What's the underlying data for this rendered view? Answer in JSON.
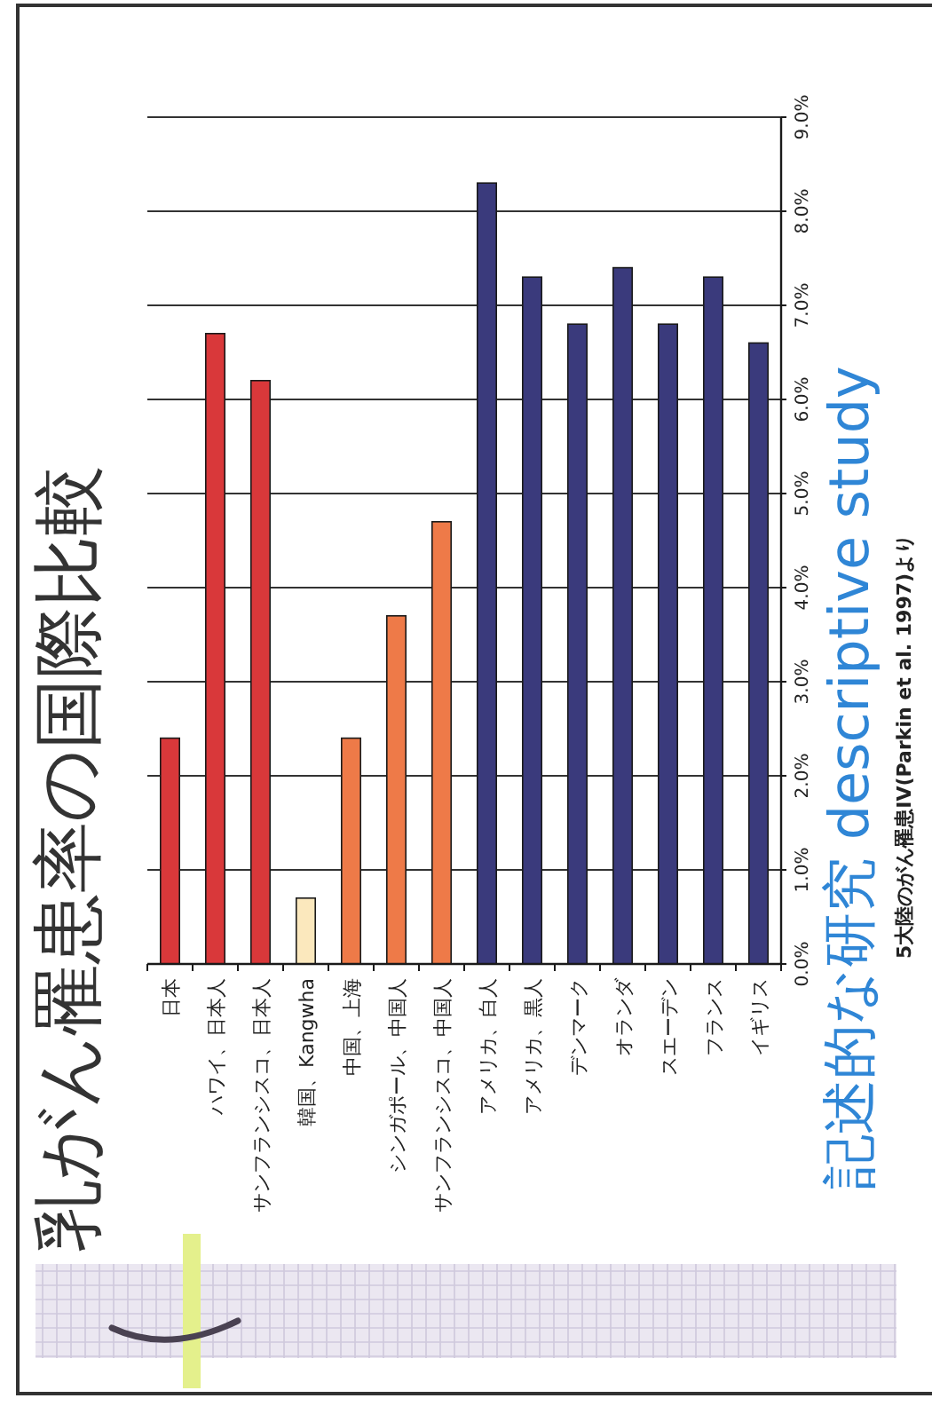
{
  "chart_data": {
    "type": "bar",
    "title": "乳がん罹患率の国際比較",
    "categories": [
      "日本",
      "ハワイ、日本人",
      "サンフランシスコ、日本人",
      "韓国、Kangwha",
      "中国、上海",
      "シンガポール、中国人",
      "サンフランシスコ、中国人",
      "アメリカ、白人",
      "アメリカ、黒人",
      "デンマーク",
      "オランダ",
      "スエーデン",
      "フランス",
      "イギリス"
    ],
    "values": [
      2.4,
      6.7,
      6.2,
      0.7,
      2.4,
      3.7,
      4.7,
      8.3,
      7.3,
      6.8,
      7.4,
      6.8,
      7.3,
      6.6
    ],
    "colors": [
      "#d9383a",
      "#d9383a",
      "#d9383a",
      "#fbe8bd",
      "#ee7a48",
      "#ee7a48",
      "#ee7a48",
      "#3a3a7c",
      "#3a3a7c",
      "#3a3a7c",
      "#3a3a7c",
      "#3a3a7c",
      "#3a3a7c",
      "#3a3a7c"
    ],
    "ylim": [
      0,
      9
    ],
    "yticks": [
      {
        "value": 0,
        "label": "0.0%"
      },
      {
        "value": 1,
        "label": "1.0%"
      },
      {
        "value": 2,
        "label": "2.0%"
      },
      {
        "value": 3,
        "label": "3.0%"
      },
      {
        "value": 4,
        "label": "4.0%"
      },
      {
        "value": 5,
        "label": "5.0%"
      },
      {
        "value": 6,
        "label": "6.0%"
      },
      {
        "value": 7,
        "label": "7.0%"
      },
      {
        "value": 8,
        "label": "8.0%"
      },
      {
        "value": 9,
        "label": "9.0%"
      }
    ],
    "grid": "y",
    "annotations": [
      "記述的な研究 descriptive study",
      "5大陸のがん罹患IV(Parkin et al. 1997)より"
    ]
  }
}
